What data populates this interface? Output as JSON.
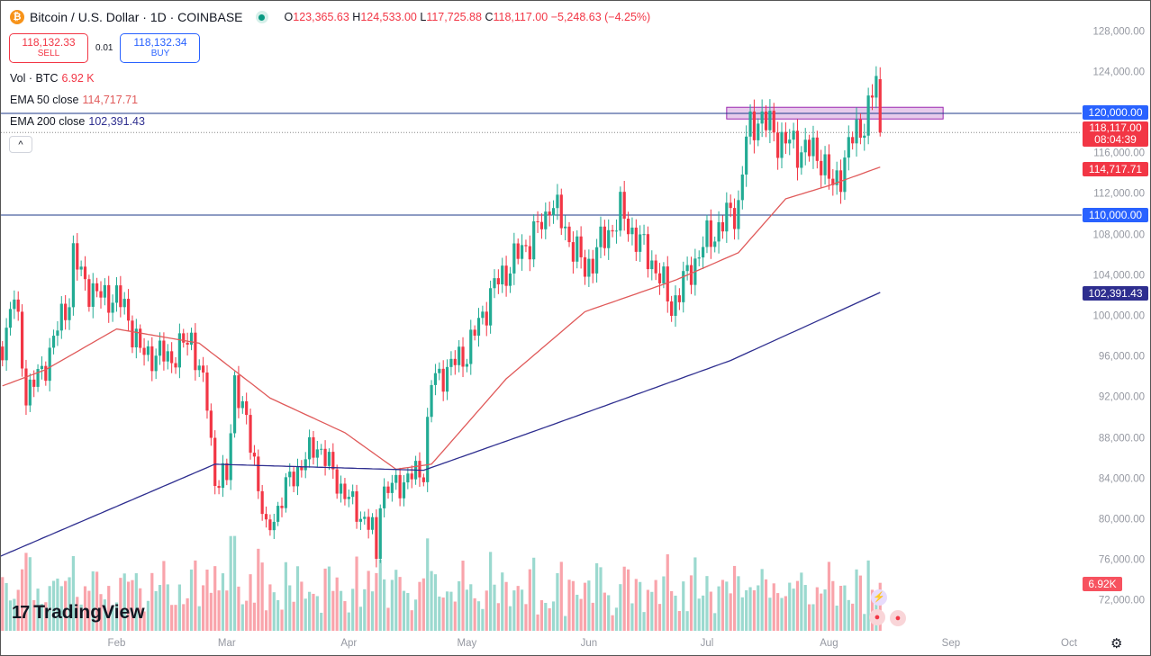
{
  "header": {
    "symbol": "Bitcoin / U.S. Dollar · 1D · COINBASE",
    "coin_glyph": "₿",
    "open_label": "O",
    "open": "123,365.63",
    "high_label": "H",
    "high": "124,533.00",
    "low_label": "L",
    "low": "117,725.88",
    "close_label": "C",
    "close": "118,117.00",
    "change": "−5,248.63 (−4.25%)"
  },
  "trade": {
    "sell_price": "118,132.33",
    "sell_label": "SELL",
    "spread": "0.01",
    "buy_price": "118,132.34",
    "buy_label": "BUY"
  },
  "indicators": {
    "vol_label": "Vol · BTC",
    "vol_value": "6.92 K",
    "ema50_label": "EMA 50 close",
    "ema50_value": "114,717.71",
    "ema200_label": "EMA 200 close",
    "ema200_value": "102,391.43"
  },
  "collapse_glyph": "^",
  "price_axis": [
    "128,000.00",
    "124,000.00",
    "116,000.00",
    "112,000.00",
    "108,000.00",
    "104,000.00",
    "100,000.00",
    "96,000.00",
    "92,000.00",
    "88,000.00",
    "84,000.00",
    "80,000.00",
    "76,000.00",
    "72,000.00"
  ],
  "price_tags": {
    "line_high": "120,000.00",
    "last_price": "118,117.00",
    "countdown": "08:04:39",
    "ema50": "114,717.71",
    "line_low": "110,000.00",
    "ema200": "102,391.43",
    "volume": "6.92K"
  },
  "time_axis": [
    "Feb",
    "Mar",
    "Apr",
    "May",
    "Jun",
    "Jul",
    "Aug",
    "Sep",
    "Oct"
  ],
  "branding": "TradingView",
  "colors": {
    "up": "#22ab94",
    "down": "#f23645",
    "ema50": "#e05a5a",
    "ema200": "#2e2e8f",
    "hline": "#2962ff",
    "zone": "#e1bee7"
  },
  "chart_data": {
    "type": "candlestick",
    "title": "Bitcoin / U.S. Dollar · 1D · COINBASE",
    "x_start": "Jan 1",
    "x_unit": "days since Jan 1",
    "ylim": [
      70000,
      130000
    ],
    "close_keypoints": [
      [
        0,
        94400
      ],
      [
        5,
        102000
      ],
      [
        8,
        92500
      ],
      [
        12,
        94500
      ],
      [
        19,
        102000
      ],
      [
        20,
        106000
      ],
      [
        22,
        104000
      ],
      [
        26,
        102000
      ],
      [
        30,
        102000
      ],
      [
        33,
        101000
      ],
      [
        37,
        96500
      ],
      [
        45,
        96000
      ],
      [
        50,
        98000
      ],
      [
        54,
        91500
      ],
      [
        56,
        84000
      ],
      [
        59,
        84000
      ],
      [
        61,
        94000
      ],
      [
        66,
        86000
      ],
      [
        69,
        78500
      ],
      [
        75,
        84000
      ],
      [
        82,
        87500
      ],
      [
        89,
        82500
      ],
      [
        96,
        79000
      ],
      [
        97,
        76300
      ],
      [
        98,
        82500
      ],
      [
        109,
        85000
      ],
      [
        111,
        93500
      ],
      [
        120,
        96500
      ],
      [
        127,
        103000
      ],
      [
        140,
        109600
      ],
      [
        141,
        111700
      ],
      [
        150,
        104600
      ],
      [
        159,
        110200
      ],
      [
        168,
        104800
      ],
      [
        172,
        101000
      ],
      [
        180,
        107000
      ],
      [
        189,
        111000
      ],
      [
        191,
        117500
      ],
      [
        194,
        119800
      ],
      [
        200,
        117300
      ],
      [
        210,
        115800
      ],
      [
        213,
        112500
      ],
      [
        218,
        117500
      ],
      [
        222,
        120000
      ],
      [
        224,
        123300
      ],
      [
        225,
        118117
      ]
    ],
    "last_candle": {
      "open": 123365.63,
      "high": 124533.0,
      "low": 117725.88,
      "close": 118117.0
    },
    "ema50_keypoints": [
      [
        2,
        93200
      ],
      [
        13,
        94800
      ],
      [
        31,
        98800
      ],
      [
        52,
        97400
      ],
      [
        70,
        92000
      ],
      [
        89,
        88600
      ],
      [
        102,
        85000
      ],
      [
        111,
        85500
      ],
      [
        130,
        93900
      ],
      [
        150,
        100500
      ],
      [
        173,
        103600
      ],
      [
        189,
        106300
      ],
      [
        201,
        111600
      ],
      [
        212,
        112900
      ],
      [
        225,
        114717.71
      ]
    ],
    "ema200_keypoints": [
      [
        0,
        76200
      ],
      [
        56,
        85500
      ],
      [
        109,
        84900
      ],
      [
        139,
        89000
      ],
      [
        187,
        95700
      ],
      [
        225,
        102391.43
      ]
    ],
    "horizontal_lines": [
      120000,
      110000
    ],
    "zone": {
      "from_day": 186,
      "to_day": 241,
      "low": 119450,
      "high": 120600
    },
    "series": [
      {
        "name": "BTCUSD"
      },
      {
        "name": "EMA 50 close"
      },
      {
        "name": "EMA 200 close"
      },
      {
        "name": "Vol · BTC"
      }
    ]
  }
}
